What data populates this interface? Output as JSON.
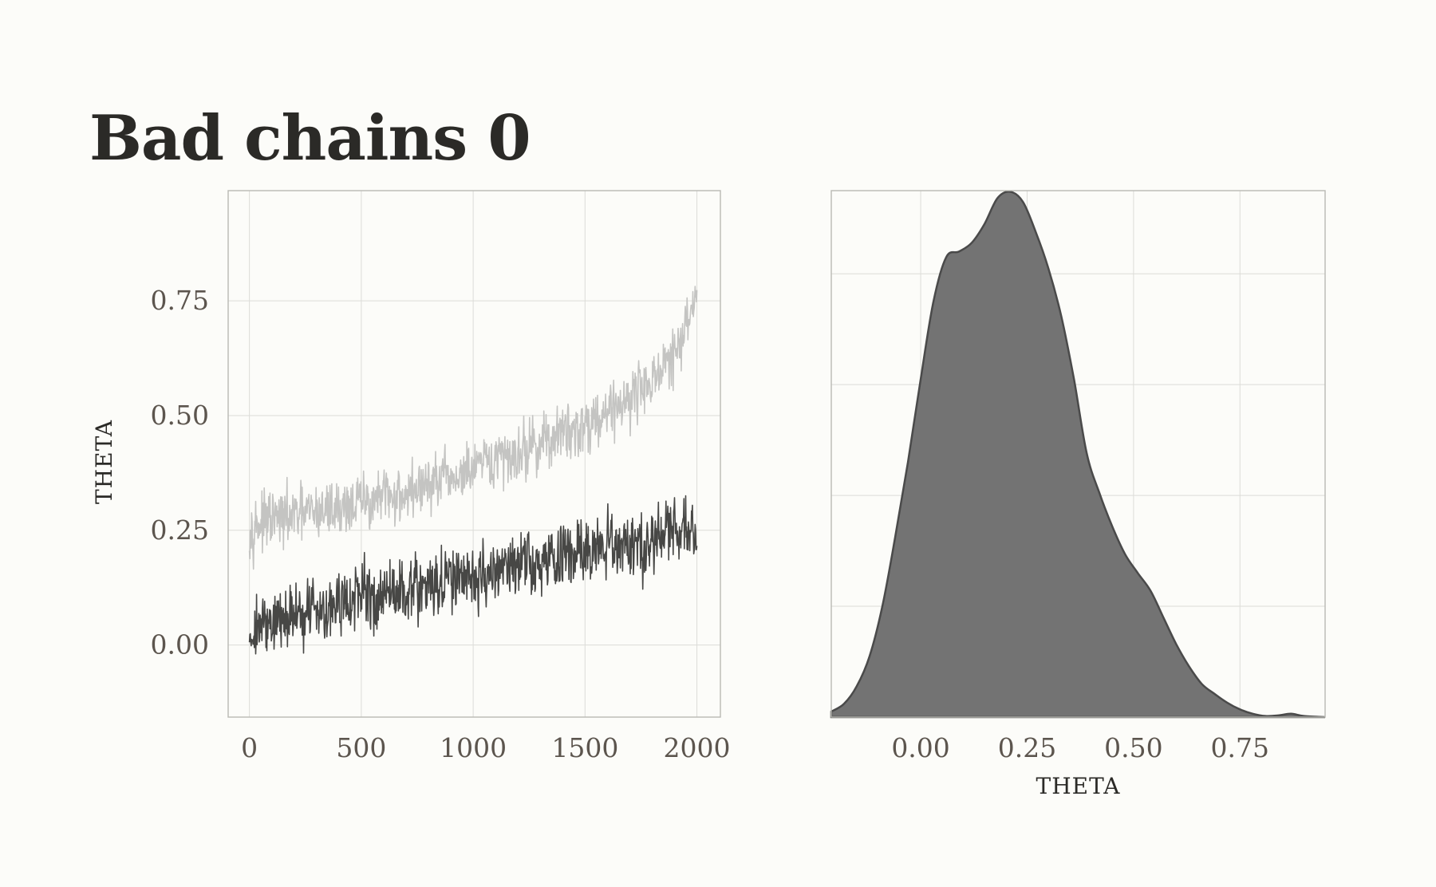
{
  "title": "Bad chains 0",
  "colors": {
    "background": "#fcfcf9",
    "grid": "#dcdcd8",
    "panel_border": "#b9b9b4",
    "chain_light": "#c4c4c2",
    "chain_dark": "#474745",
    "density_fill": "#737373",
    "density_line": "#4a4a4a"
  },
  "chart_data": [
    {
      "type": "line",
      "title": "",
      "xlabel": "",
      "ylabel": "THETA",
      "xlim": [
        -95,
        2105
      ],
      "ylim": [
        -0.157,
        0.99
      ],
      "x_ticks": [
        0,
        500,
        1000,
        1500,
        2000
      ],
      "x_tick_labels": [
        "0",
        "500",
        "1000",
        "1500",
        "2000"
      ],
      "y_ticks": [
        0.0,
        0.25,
        0.5,
        0.75
      ],
      "y_tick_labels": [
        "0.00",
        "0.25",
        "0.50",
        "0.75"
      ],
      "grid": true,
      "series": [
        {
          "color": "#c4c4c2",
          "x": [
            0,
            100,
            200,
            300,
            400,
            500,
            600,
            700,
            800,
            900,
            1000,
            1100,
            1200,
            1300,
            1400,
            1500,
            1600,
            1700,
            1800,
            1850,
            1900,
            1950,
            2000
          ],
          "values": [
            0.26,
            0.27,
            0.28,
            0.29,
            0.3,
            0.31,
            0.32,
            0.33,
            0.35,
            0.36,
            0.38,
            0.4,
            0.42,
            0.44,
            0.46,
            0.48,
            0.51,
            0.54,
            0.58,
            0.6,
            0.63,
            0.68,
            0.78
          ],
          "noise": 0.04,
          "min": 0.15,
          "max": 0.94
        },
        {
          "color": "#474745",
          "x": [
            0,
            100,
            200,
            300,
            400,
            500,
            600,
            700,
            800,
            900,
            1000,
            1100,
            1200,
            1300,
            1400,
            1500,
            1600,
            1700,
            1800,
            1900,
            2000
          ],
          "values": [
            0.03,
            0.05,
            0.065,
            0.08,
            0.09,
            0.1,
            0.11,
            0.12,
            0.13,
            0.14,
            0.15,
            0.16,
            0.17,
            0.18,
            0.19,
            0.2,
            0.21,
            0.22,
            0.23,
            0.245,
            0.25
          ],
          "noise": 0.045,
          "min": -0.1,
          "max": 0.37
        }
      ]
    },
    {
      "type": "area",
      "title": "",
      "xlabel": "THETA",
      "ylabel": "",
      "xlim": [
        -0.21,
        0.95
      ],
      "ylim": [
        0,
        4.75
      ],
      "x_ticks": [
        0.0,
        0.25,
        0.5,
        0.75
      ],
      "x_tick_labels": [
        "0.00",
        "0.25",
        "0.50",
        "0.75"
      ],
      "y_ticks": [
        1,
        2,
        3,
        4
      ],
      "y_tick_labels": [],
      "grid": true,
      "x": [
        -0.21,
        -0.18,
        -0.15,
        -0.12,
        -0.09,
        -0.06,
        -0.03,
        0.0,
        0.03,
        0.06,
        0.09,
        0.12,
        0.15,
        0.18,
        0.21,
        0.24,
        0.27,
        0.3,
        0.33,
        0.36,
        0.39,
        0.42,
        0.45,
        0.48,
        0.51,
        0.54,
        0.57,
        0.6,
        0.63,
        0.66,
        0.69,
        0.72,
        0.75,
        0.78,
        0.81,
        0.84,
        0.87,
        0.9,
        0.95
      ],
      "values": [
        0.05,
        0.12,
        0.28,
        0.55,
        1.0,
        1.62,
        2.3,
        3.05,
        3.75,
        4.15,
        4.2,
        4.28,
        4.45,
        4.68,
        4.74,
        4.65,
        4.38,
        4.05,
        3.62,
        3.05,
        2.38,
        2.02,
        1.72,
        1.47,
        1.3,
        1.14,
        0.9,
        0.66,
        0.46,
        0.3,
        0.21,
        0.13,
        0.07,
        0.03,
        0.01,
        0.015,
        0.03,
        0.01,
        0.0
      ]
    }
  ]
}
